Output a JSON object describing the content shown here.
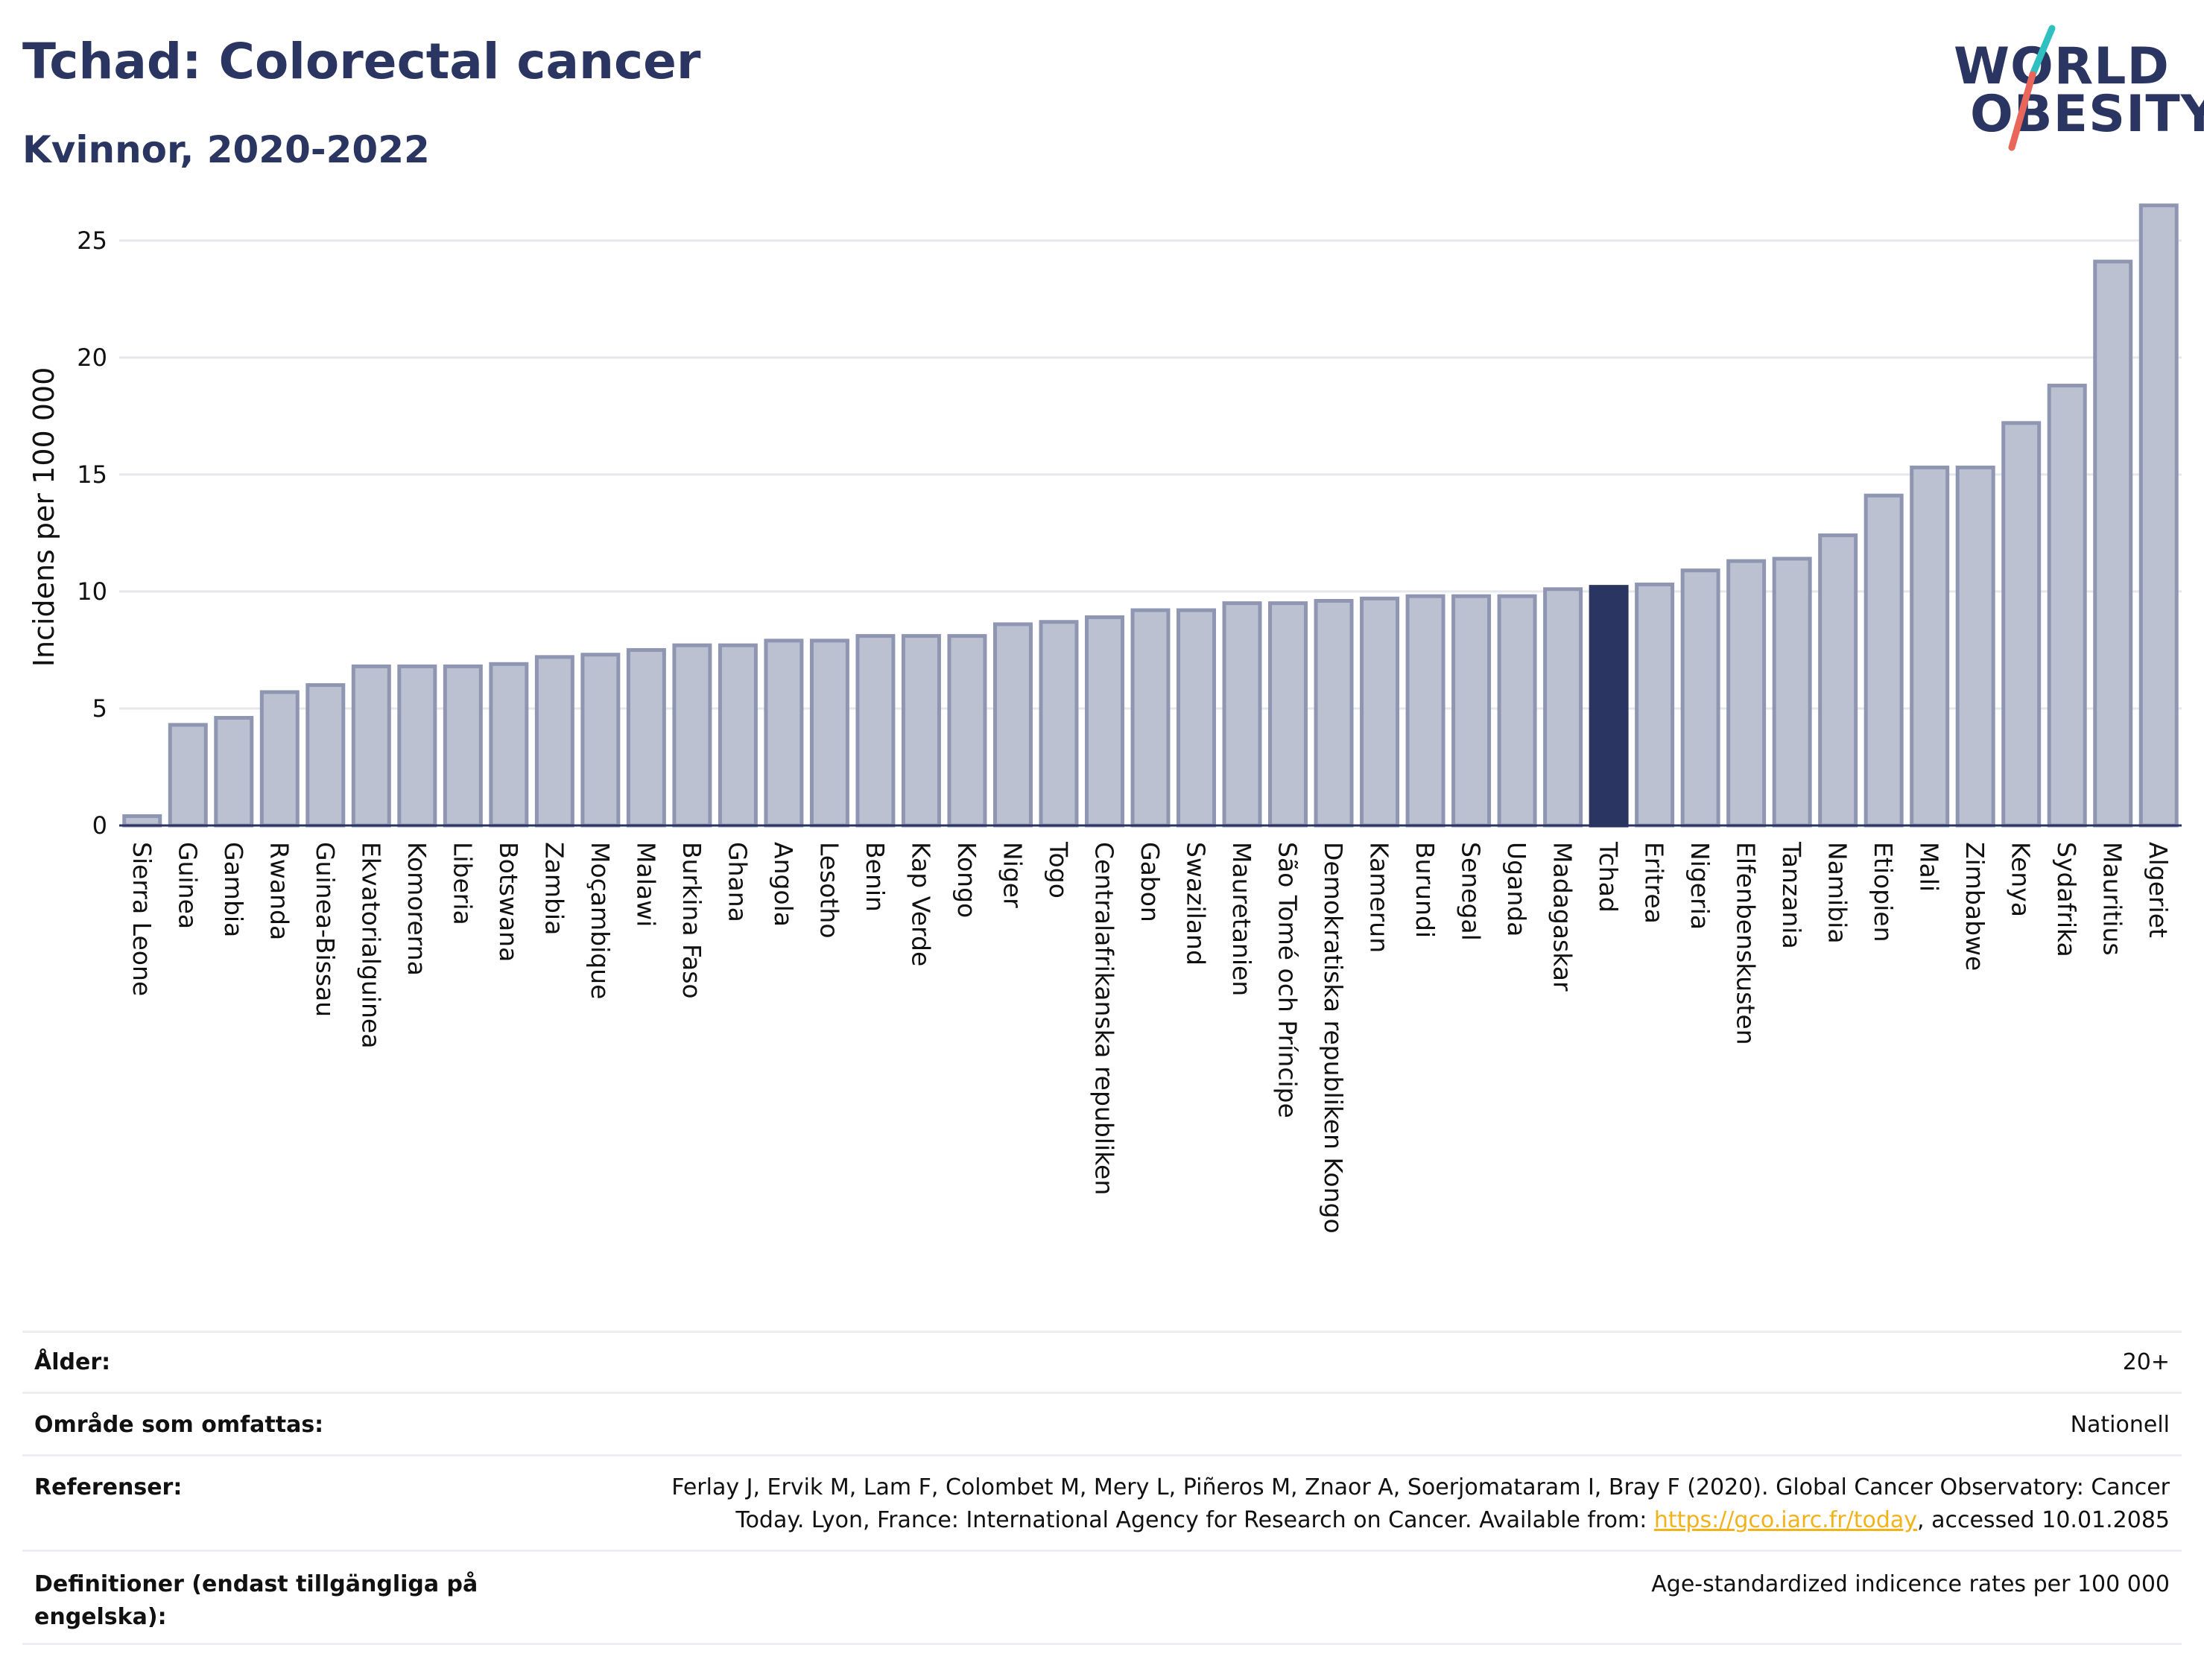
{
  "header": {
    "title": "Tchad: Colorectal cancer",
    "subtitle": "Kvinnor, 2020-2022"
  },
  "logo": {
    "line1": "WORLD",
    "line2": "OBESITY",
    "slash_colors": [
      "#2fc1c1",
      "#e8665a"
    ]
  },
  "chart_data": {
    "type": "bar",
    "ylabel": "Incidens per 100 000",
    "xlabel": "",
    "ylim": [
      0,
      27
    ],
    "yticks": [
      0,
      5,
      10,
      15,
      20,
      25
    ],
    "grid": true,
    "highlight": "Tchad",
    "colors": {
      "bar": "#bcc1d1",
      "bar_edge": "#8f96b2",
      "highlight": "#2b3561"
    },
    "categories": [
      "Sierra Leone",
      "Guinea",
      "Gambia",
      "Rwanda",
      "Guinea-Bissau",
      "Ekvatorialguinea",
      "Komorerna",
      "Liberia",
      "Botswana",
      "Zambia",
      "Moçambique",
      "Malawi",
      "Burkina Faso",
      "Ghana",
      "Angola",
      "Lesotho",
      "Benin",
      "Kap Verde",
      "Kongo",
      "Niger",
      "Togo",
      "Centralafrikanska republiken",
      "Gabon",
      "Swaziland",
      "Mauretanien",
      "São Tomé och Príncipe",
      "Demokratiska republiken Kongo",
      "Kamerun",
      "Burundi",
      "Senegal",
      "Uganda",
      "Madagaskar",
      "Tchad",
      "Eritrea",
      "Nigeria",
      "Elfenbenskusten",
      "Tanzania",
      "Namibia",
      "Etiopien",
      "Mali",
      "Zimbabwe",
      "Kenya",
      "Sydafrika",
      "Mauritius",
      "Algeriet"
    ],
    "values": [
      0.4,
      4.3,
      4.6,
      5.7,
      6.0,
      6.8,
      6.8,
      6.8,
      6.9,
      7.2,
      7.3,
      7.5,
      7.7,
      7.7,
      7.9,
      7.9,
      8.1,
      8.1,
      8.1,
      8.6,
      8.7,
      8.9,
      9.2,
      9.2,
      9.5,
      9.5,
      9.6,
      9.7,
      9.8,
      9.8,
      9.8,
      10.1,
      10.2,
      10.3,
      10.9,
      11.3,
      11.4,
      12.4,
      14.1,
      15.3,
      15.3,
      17.2,
      18.8,
      24.1,
      26.5
    ]
  },
  "meta": {
    "rows": [
      {
        "label": "Ålder:",
        "value": "20+"
      },
      {
        "label": "Område som omfattas:",
        "value": "Nationell"
      },
      {
        "label": "Referenser:",
        "value_line1": "Ferlay J, Ervik M, Lam F, Colombet M, Mery L, Piñeros M, Znaor A, Soerjomataram I, Bray F (2020). Global Cancer Observatory: Cancer",
        "value_line2_pre": "Today. Lyon, France: International Agency for Research on Cancer. Available from: ",
        "link": "https://gco.iarc.fr/today",
        "value_line2_post": ", accessed 10.01.2085"
      },
      {
        "label_line1": "Definitioner (endast tillgängliga på",
        "label_line2": "engelska):",
        "value": "Age-standardized indicence rates per 100 000"
      }
    ]
  }
}
